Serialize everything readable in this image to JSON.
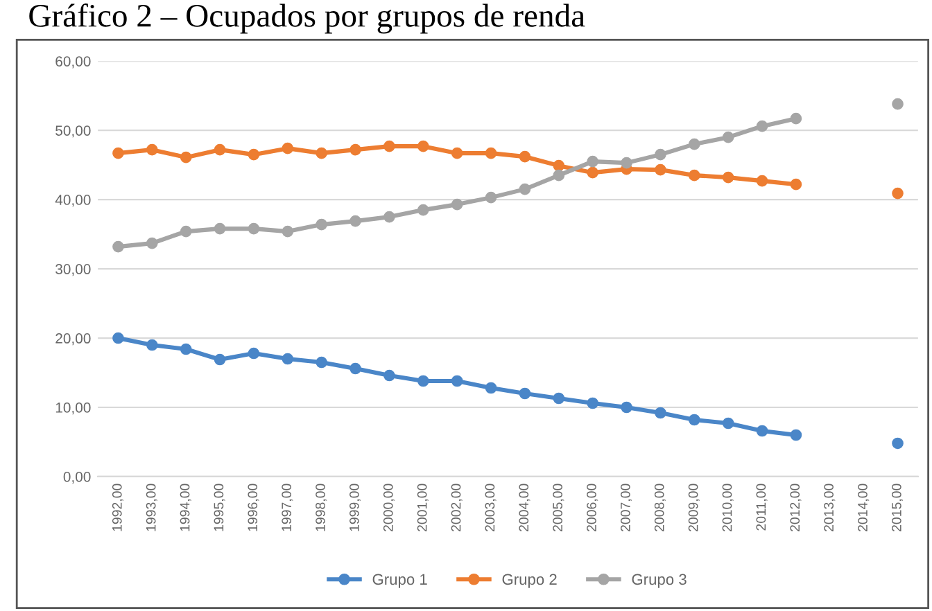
{
  "chart_data": {
    "type": "line",
    "title": "Gráfico 2 – Ocupados por grupos de renda",
    "categories": [
      "1992,00",
      "1993,00",
      "1994,00",
      "1995,00",
      "1996,00",
      "1997,00",
      "1998,00",
      "1999,00",
      "2000,00",
      "2001,00",
      "2002,00",
      "2003,00",
      "2004,00",
      "2005,00",
      "2006,00",
      "2007,00",
      "2008,00",
      "2009,00",
      "2010,00",
      "2011,00",
      "2012,00",
      "2013,00",
      "2014,00",
      "2015,00"
    ],
    "series": [
      {
        "name": "Grupo 1",
        "color": "#4a86c8",
        "values": [
          20.0,
          19.0,
          18.4,
          16.9,
          17.8,
          17.0,
          16.5,
          15.6,
          14.6,
          13.8,
          13.8,
          12.8,
          12.0,
          11.3,
          10.6,
          10.0,
          9.2,
          8.2,
          7.7,
          6.6,
          6.0,
          null,
          null,
          4.8
        ]
      },
      {
        "name": "Grupo 2",
        "color": "#ed7d31",
        "values": [
          46.7,
          47.2,
          46.1,
          47.2,
          46.5,
          47.4,
          46.7,
          47.2,
          47.7,
          47.7,
          46.7,
          46.7,
          46.2,
          44.9,
          43.9,
          44.4,
          44.3,
          43.5,
          43.2,
          42.7,
          42.2,
          null,
          null,
          40.9
        ]
      },
      {
        "name": "Grupo 3",
        "color": "#a5a5a5",
        "values": [
          33.2,
          33.7,
          35.4,
          35.8,
          35.8,
          35.4,
          36.4,
          36.9,
          37.5,
          38.5,
          39.3,
          40.3,
          41.5,
          43.5,
          45.5,
          45.3,
          46.5,
          48.0,
          49.0,
          50.6,
          51.7,
          null,
          null,
          53.8
        ]
      }
    ],
    "ylim": [
      0,
      60
    ],
    "yticks": [
      {
        "value": 0,
        "label": "0,00"
      },
      {
        "value": 10,
        "label": "10,00"
      },
      {
        "value": 20,
        "label": "20,00"
      },
      {
        "value": 30,
        "label": "30,00"
      },
      {
        "value": 40,
        "label": "40,00"
      },
      {
        "value": 50,
        "label": "50,00"
      },
      {
        "value": 60,
        "label": "60,00"
      }
    ],
    "grid": "y",
    "legend": "bottom",
    "marker": "circle",
    "line_style": "solid"
  }
}
